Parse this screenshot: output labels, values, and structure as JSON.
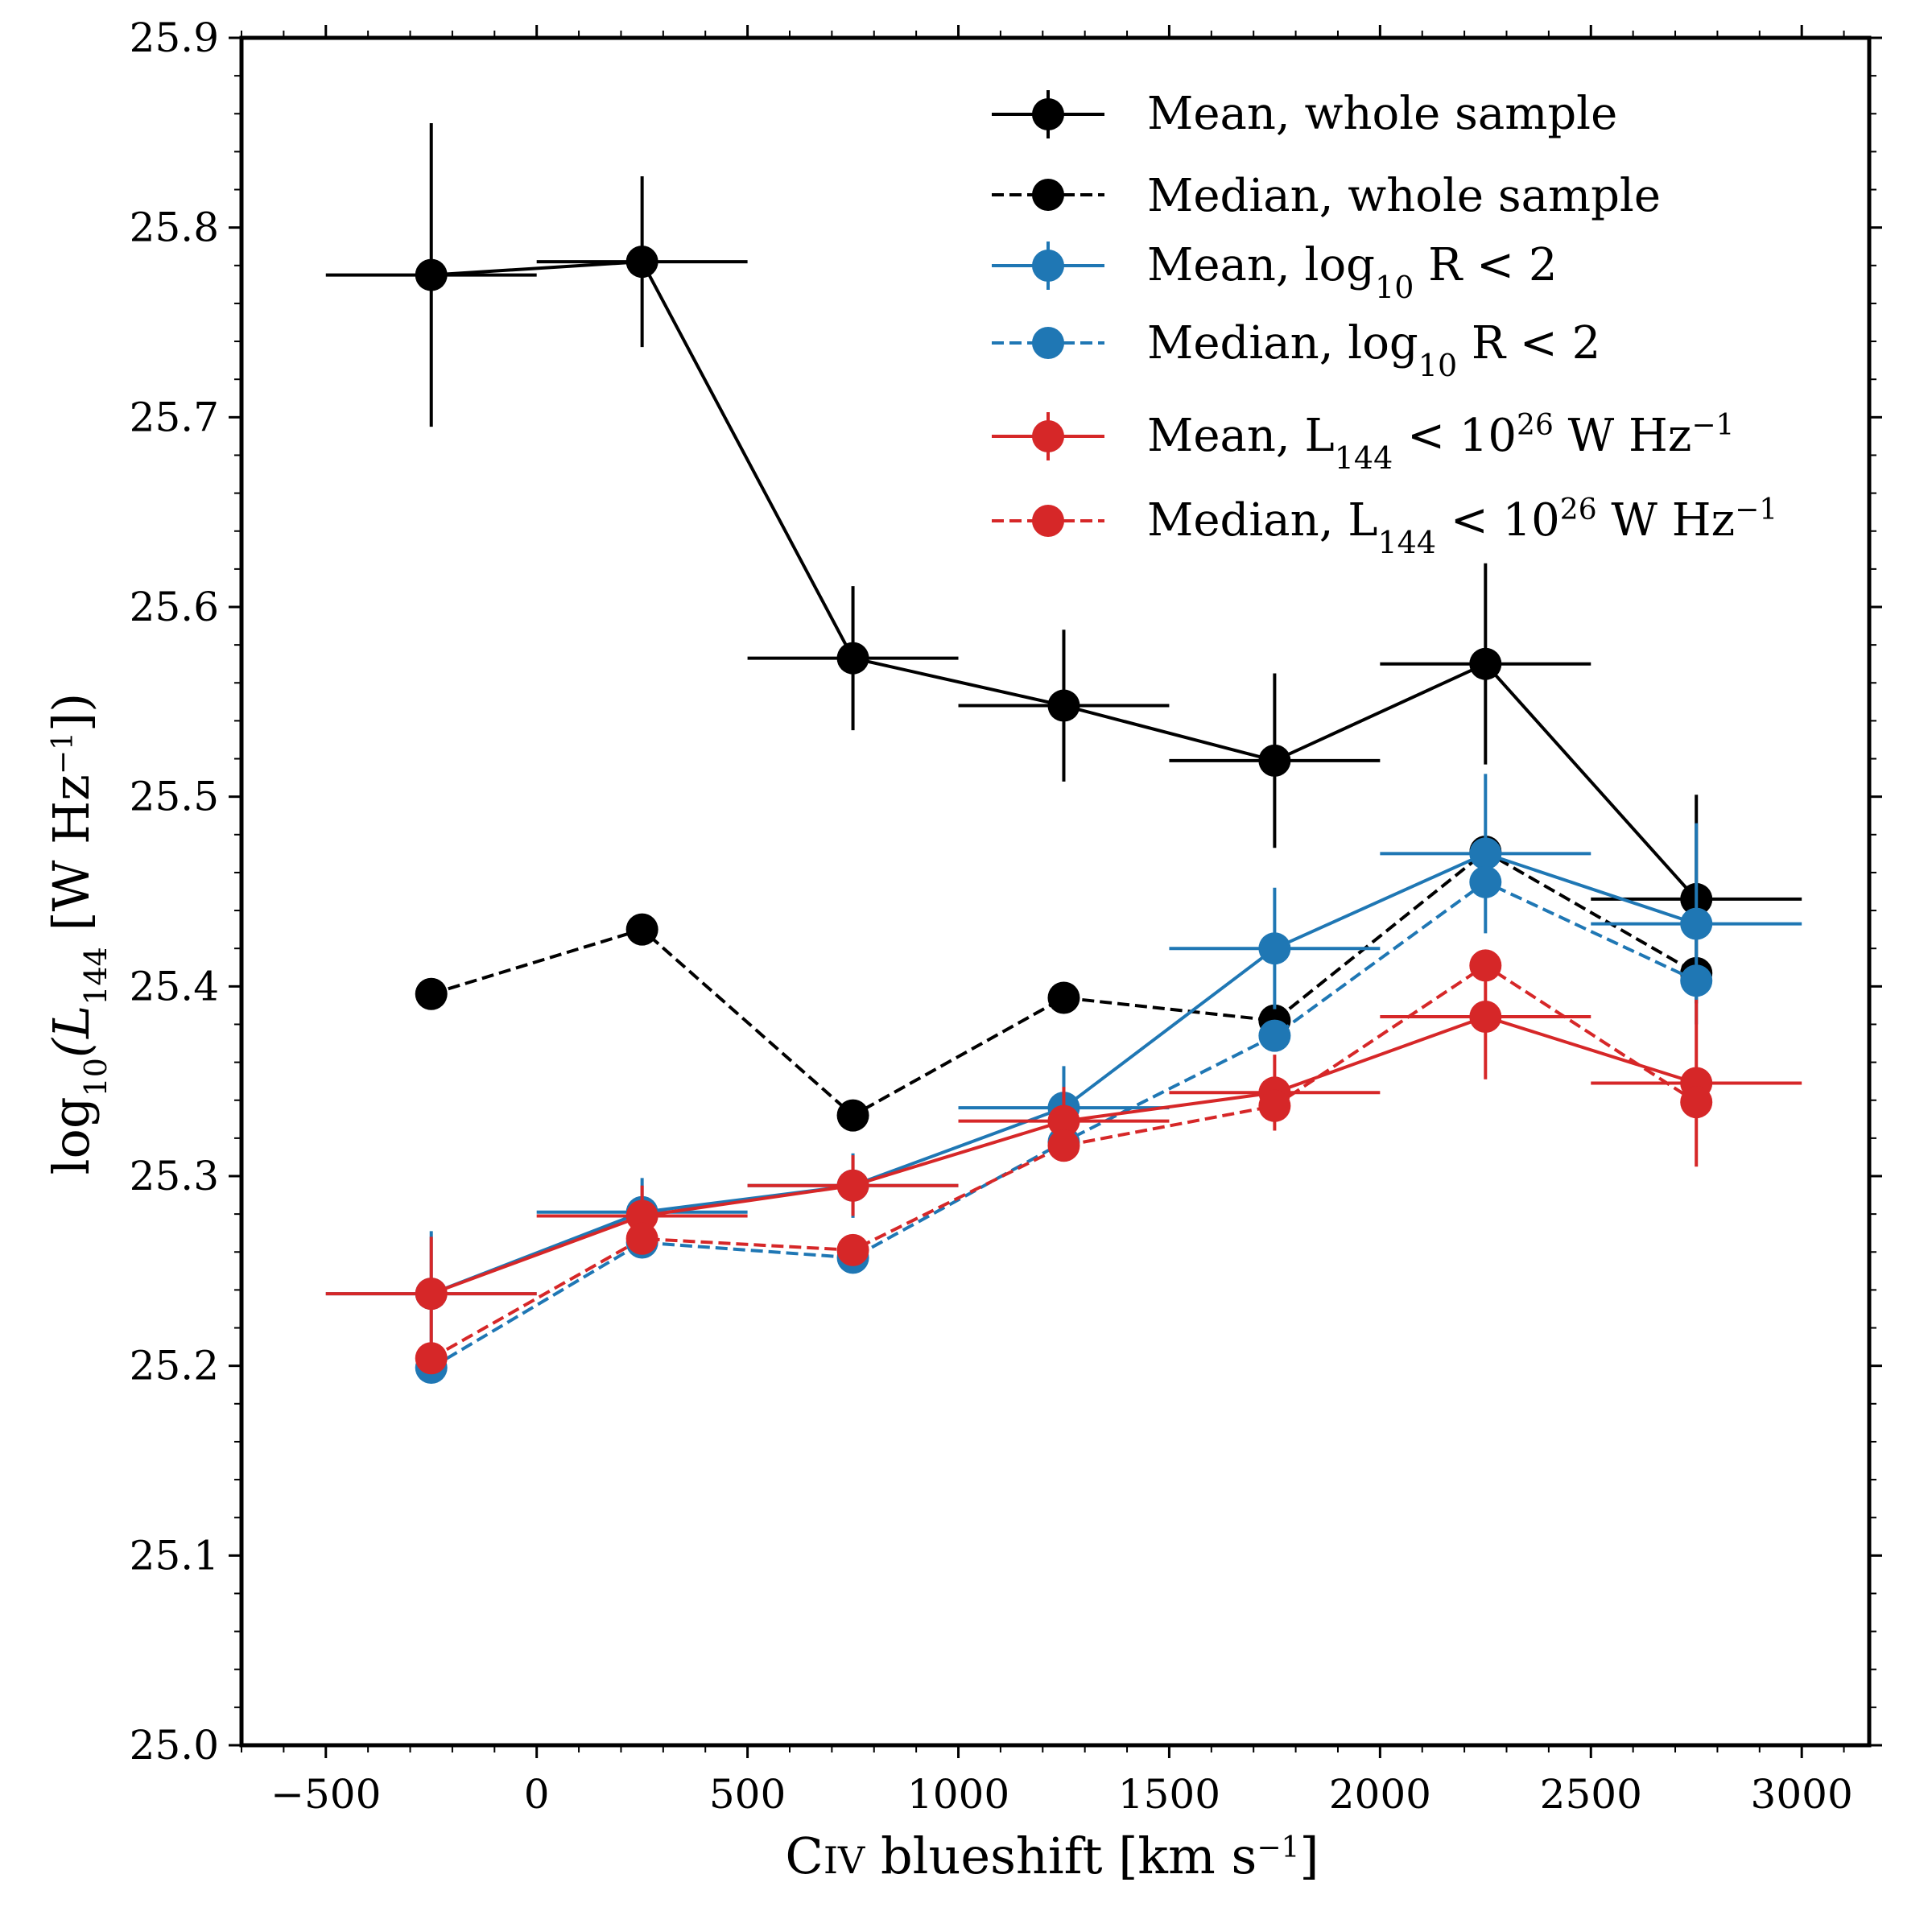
{
  "chart_data": {
    "type": "line",
    "x_axis": {
      "label_prefix": "C",
      "label_smallcaps": "IV",
      "label_main": " blueshift [km s",
      "label_sup": "−1",
      "label_end": "]",
      "xlim": [
        -700,
        3160
      ],
      "ticks": [
        -500,
        0,
        500,
        1000,
        1500,
        2000,
        2500,
        3000
      ],
      "tick_labels": [
        "−500",
        "0",
        "500",
        "1000",
        "1500",
        "2000",
        "2500",
        "3000"
      ]
    },
    "y_axis": {
      "label_log": "log",
      "label_log_sub": "10",
      "label_L": "(L",
      "label_L_sub": "144",
      "label_units": " [W Hz",
      "label_units_sup": "−1",
      "label_end": "])",
      "ylim": [
        25.0,
        25.9
      ],
      "ticks": [
        25.0,
        25.1,
        25.2,
        25.3,
        25.4,
        25.5,
        25.6,
        25.7,
        25.8,
        25.9
      ],
      "tick_labels": [
        "25.0",
        "25.1",
        "25.2",
        "25.3",
        "25.4",
        "25.5",
        "25.6",
        "25.7",
        "25.8",
        "25.9"
      ]
    },
    "legend_position": "top-right",
    "series": [
      {
        "id": "mean-whole",
        "name": "Mean, whole sample",
        "legend": {
          "text": "Mean, whole sample"
        },
        "color": "#000000",
        "dashed": false,
        "has_errors": true,
        "x": [
          -250,
          250,
          750,
          1250,
          1750,
          2250,
          2750
        ],
        "y": [
          25.775,
          25.782,
          25.573,
          25.548,
          25.519,
          25.57,
          25.446
        ],
        "xerr": [
          250,
          250,
          250,
          250,
          250,
          250,
          250
        ],
        "yerr": [
          0.08,
          0.045,
          0.038,
          0.04,
          0.046,
          0.053,
          0.055
        ]
      },
      {
        "id": "median-whole",
        "name": "Median, whole sample",
        "legend": {
          "text": "Median, whole sample"
        },
        "color": "#000000",
        "dashed": true,
        "has_errors": false,
        "x": [
          -250,
          250,
          750,
          1250,
          1750,
          2250,
          2750
        ],
        "y": [
          25.396,
          25.43,
          25.332,
          25.394,
          25.382,
          25.471,
          25.407
        ]
      },
      {
        "id": "mean-logR",
        "name": "Mean, log10 R < 2",
        "legend": {
          "pre": "Mean, log",
          "sub": "10",
          "post": " R < 2"
        },
        "color": "#1f77b4",
        "dashed": false,
        "has_errors": true,
        "x": [
          -250,
          250,
          750,
          1250,
          1750,
          2250,
          2750
        ],
        "y": [
          25.238,
          25.281,
          25.295,
          25.336,
          25.42,
          25.47,
          25.433
        ],
        "xerr": [
          250,
          250,
          250,
          250,
          250,
          250,
          250
        ],
        "yerr": [
          0.033,
          0.018,
          0.017,
          0.022,
          0.032,
          0.042,
          0.053
        ]
      },
      {
        "id": "median-logR",
        "name": "Median, log10 R < 2",
        "legend": {
          "pre": "Median, log",
          "sub": "10",
          "post": " R < 2"
        },
        "color": "#1f77b4",
        "dashed": true,
        "has_errors": false,
        "x": [
          -250,
          250,
          750,
          1250,
          1750,
          2250,
          2750
        ],
        "y": [
          25.199,
          25.265,
          25.257,
          25.318,
          25.374,
          25.455,
          25.403
        ]
      },
      {
        "id": "mean-L144",
        "name": "Mean, L144 < 10^26 W Hz^-1",
        "legend": {
          "pre": "Mean, L",
          "sub": "144",
          "mid": " < 10",
          "sup": "26",
          "mid2": " W Hz",
          "sup2": "−1"
        },
        "color": "#d62728",
        "dashed": false,
        "has_errors": true,
        "x": [
          -250,
          250,
          750,
          1250,
          1750,
          2250,
          2750
        ],
        "y": [
          25.238,
          25.279,
          25.295,
          25.329,
          25.344,
          25.384,
          25.349
        ],
        "xerr": [
          250,
          250,
          250,
          250,
          250,
          250,
          250
        ],
        "yerr": [
          0.03,
          0.016,
          0.016,
          0.018,
          0.02,
          0.033,
          0.044
        ]
      },
      {
        "id": "median-L144",
        "name": "Median, L144 < 10^26 W Hz^-1",
        "legend": {
          "pre": "Median, L",
          "sub": "144",
          "mid": " < 10",
          "sup": "26",
          "mid2": " W Hz",
          "sup2": "−1"
        },
        "color": "#d62728",
        "dashed": true,
        "has_errors": false,
        "x": [
          -250,
          250,
          750,
          1250,
          1750,
          2250,
          2750
        ],
        "y": [
          25.204,
          25.267,
          25.261,
          25.316,
          25.337,
          25.411,
          25.339
        ]
      }
    ]
  }
}
